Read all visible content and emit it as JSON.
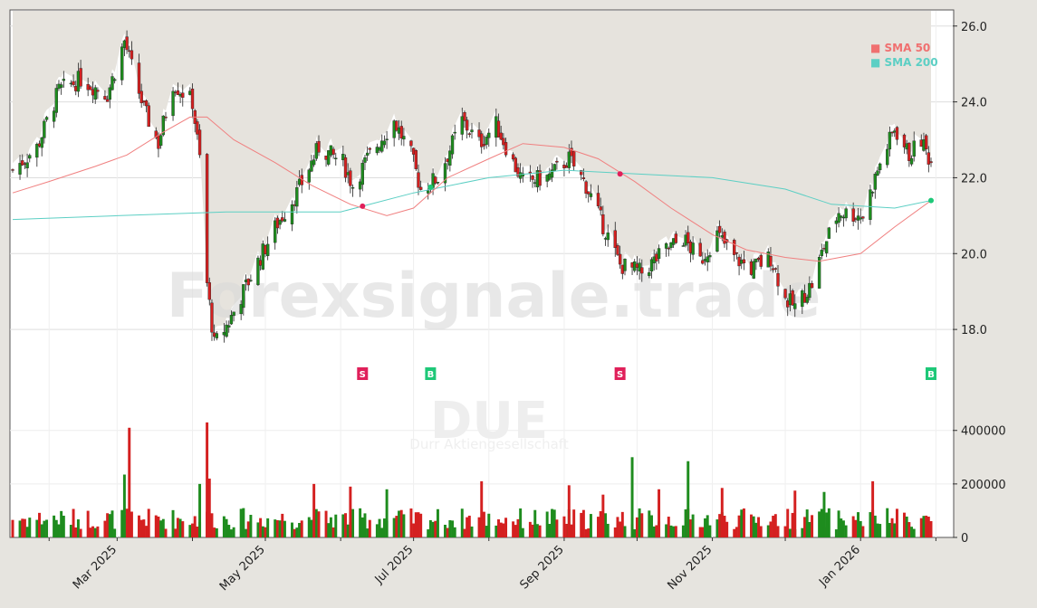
{
  "watermark": "Forexsignale.trade",
  "ticker": "DUE",
  "company": "Durr Aktiengesellschaft",
  "colors": {
    "up": "#1e8c1e",
    "down": "#d42020",
    "sma50": "#f08080",
    "sma200": "#5ccfc4",
    "buy": "#1ec878",
    "sell": "#e0205a"
  },
  "chart_data": {
    "type": "candlestick",
    "price_axis": {
      "ylim": [
        16.5,
        26.4
      ],
      "ticks": [
        "18.0",
        "20.0",
        "22.0",
        "24.0",
        "26.0"
      ],
      "tick_values": [
        18,
        20,
        22,
        24,
        26
      ]
    },
    "volume_axis": {
      "ylim": [
        0,
        460000
      ],
      "ticks": [
        "0",
        "200000",
        "400000"
      ],
      "tick_values": [
        0,
        200000,
        400000
      ]
    },
    "x_axis": {
      "start": "2025-01-17",
      "end": "2026-01-30",
      "ticks": [
        {
          "label": "Mar 2025",
          "date": "2025-03-01"
        },
        {
          "label": "May 2025",
          "date": "2025-05-01"
        },
        {
          "label": "Jul 2025",
          "date": "2025-07-01"
        },
        {
          "label": "Sep 2025",
          "date": "2025-09-01"
        },
        {
          "label": "Nov 2025",
          "date": "2025-11-01"
        },
        {
          "label": "Jan 2026",
          "date": "2026-01-01"
        }
      ]
    },
    "legend": [
      {
        "label": "SMA 50",
        "color": "#f08080"
      },
      {
        "label": "SMA 200",
        "color": "#5ccfc4"
      }
    ],
    "close_path": [
      [
        "2025-01-17",
        22.2
      ],
      [
        "2025-01-27",
        22.8
      ],
      [
        "2025-02-05",
        24.3
      ],
      [
        "2025-02-14",
        24.6
      ],
      [
        "2025-02-25",
        24.2
      ],
      [
        "2025-03-04",
        25.6
      ],
      [
        "2025-03-12",
        23.8
      ],
      [
        "2025-03-18",
        22.9
      ],
      [
        "2025-03-24",
        24.5
      ],
      [
        "2025-04-01",
        24.0
      ],
      [
        "2025-04-04",
        22.5
      ],
      [
        "2025-04-07",
        19.2
      ],
      [
        "2025-04-10",
        17.6
      ],
      [
        "2025-04-16",
        18.2
      ],
      [
        "2025-04-25",
        19.4
      ],
      [
        "2025-05-06",
        20.8
      ],
      [
        "2025-05-14",
        21.6
      ],
      [
        "2025-05-23",
        22.8
      ],
      [
        "2025-06-02",
        22.4
      ],
      [
        "2025-06-06",
        21.8
      ],
      [
        "2025-06-13",
        22.6
      ],
      [
        "2025-06-23",
        23.5
      ],
      [
        "2025-06-30",
        22.6
      ],
      [
        "2025-07-04",
        21.7
      ],
      [
        "2025-07-11",
        22.0
      ],
      [
        "2025-07-21",
        23.5
      ],
      [
        "2025-07-28",
        22.9
      ],
      [
        "2025-08-04",
        23.4
      ],
      [
        "2025-08-11",
        22.4
      ],
      [
        "2025-08-15",
        21.9
      ],
      [
        "2025-08-25",
        22.0
      ],
      [
        "2025-09-03",
        22.5
      ],
      [
        "2025-09-10",
        21.8
      ],
      [
        "2025-09-16",
        20.9
      ],
      [
        "2025-09-24",
        19.7
      ],
      [
        "2025-10-03",
        19.5
      ],
      [
        "2025-10-13",
        20.1
      ],
      [
        "2025-10-20",
        20.4
      ],
      [
        "2025-10-27",
        19.8
      ],
      [
        "2025-11-03",
        20.5
      ],
      [
        "2025-11-10",
        19.9
      ],
      [
        "2025-11-17",
        19.6
      ],
      [
        "2025-11-25",
        19.9
      ],
      [
        "2025-12-01",
        18.8
      ],
      [
        "2025-12-05",
        18.6
      ],
      [
        "2025-12-12",
        19.2
      ],
      [
        "2025-12-17",
        20.2
      ],
      [
        "2025-12-23",
        21.1
      ],
      [
        "2026-01-02",
        21.0
      ],
      [
        "2026-01-08",
        22.2
      ],
      [
        "2026-01-15",
        23.3
      ],
      [
        "2026-01-21",
        22.6
      ],
      [
        "2026-01-26",
        23.0
      ],
      [
        "2026-01-30",
        22.4
      ]
    ],
    "sma50": [
      [
        "2025-01-17",
        21.6
      ],
      [
        "2025-02-01",
        21.9
      ],
      [
        "2025-02-20",
        22.3
      ],
      [
        "2025-03-05",
        22.6
      ],
      [
        "2025-03-20",
        23.2
      ],
      [
        "2025-03-31",
        23.6
      ],
      [
        "2025-04-07",
        23.6
      ],
      [
        "2025-04-18",
        23.0
      ],
      [
        "2025-05-05",
        22.4
      ],
      [
        "2025-05-20",
        21.8
      ],
      [
        "2025-06-05",
        21.3
      ],
      [
        "2025-06-20",
        21.0
      ],
      [
        "2025-07-01",
        21.2
      ],
      [
        "2025-07-15",
        22.0
      ],
      [
        "2025-08-01",
        22.5
      ],
      [
        "2025-08-15",
        22.9
      ],
      [
        "2025-09-01",
        22.8
      ],
      [
        "2025-09-15",
        22.5
      ],
      [
        "2025-09-30",
        21.9
      ],
      [
        "2025-10-15",
        21.2
      ],
      [
        "2025-11-01",
        20.5
      ],
      [
        "2025-11-15",
        20.1
      ],
      [
        "2025-12-01",
        19.9
      ],
      [
        "2025-12-15",
        19.8
      ],
      [
        "2026-01-01",
        20.0
      ],
      [
        "2026-01-15",
        20.7
      ],
      [
        "2026-01-30",
        21.4
      ]
    ],
    "sma200": [
      [
        "2025-01-17",
        20.9
      ],
      [
        "2025-03-01",
        21.0
      ],
      [
        "2025-04-15",
        21.1
      ],
      [
        "2025-06-01",
        21.1
      ],
      [
        "2025-07-01",
        21.6
      ],
      [
        "2025-08-01",
        22.0
      ],
      [
        "2025-09-01",
        22.2
      ],
      [
        "2025-10-01",
        22.1
      ],
      [
        "2025-11-01",
        22.0
      ],
      [
        "2025-12-01",
        21.7
      ],
      [
        "2025-12-20",
        21.3
      ],
      [
        "2026-01-15",
        21.2
      ],
      [
        "2026-01-30",
        21.4
      ]
    ],
    "crossovers": [
      {
        "date": "2025-06-10",
        "price": 21.25,
        "signal": "S"
      },
      {
        "date": "2025-07-08",
        "price": 21.75,
        "signal": "B"
      },
      {
        "date": "2025-09-24",
        "price": 22.1,
        "signal": "S"
      },
      {
        "date": "2026-01-30",
        "price": 21.4,
        "signal": "B"
      }
    ],
    "volume_spikes": [
      [
        "2025-03-06",
        410000
      ],
      [
        "2025-03-04",
        235000
      ],
      [
        "2025-04-07",
        430000
      ],
      [
        "2025-04-08",
        220000
      ],
      [
        "2025-04-04",
        200000
      ],
      [
        "2025-05-21",
        200000
      ],
      [
        "2025-06-05",
        190000
      ],
      [
        "2025-06-20",
        180000
      ],
      [
        "2025-07-29",
        210000
      ],
      [
        "2025-09-03",
        195000
      ],
      [
        "2025-09-29",
        300000
      ],
      [
        "2025-09-17",
        160000
      ],
      [
        "2025-10-10",
        180000
      ],
      [
        "2025-10-22",
        285000
      ],
      [
        "2025-11-05",
        185000
      ],
      [
        "2025-12-05",
        175000
      ],
      [
        "2025-12-17",
        170000
      ],
      [
        "2026-01-06",
        210000
      ]
    ]
  }
}
